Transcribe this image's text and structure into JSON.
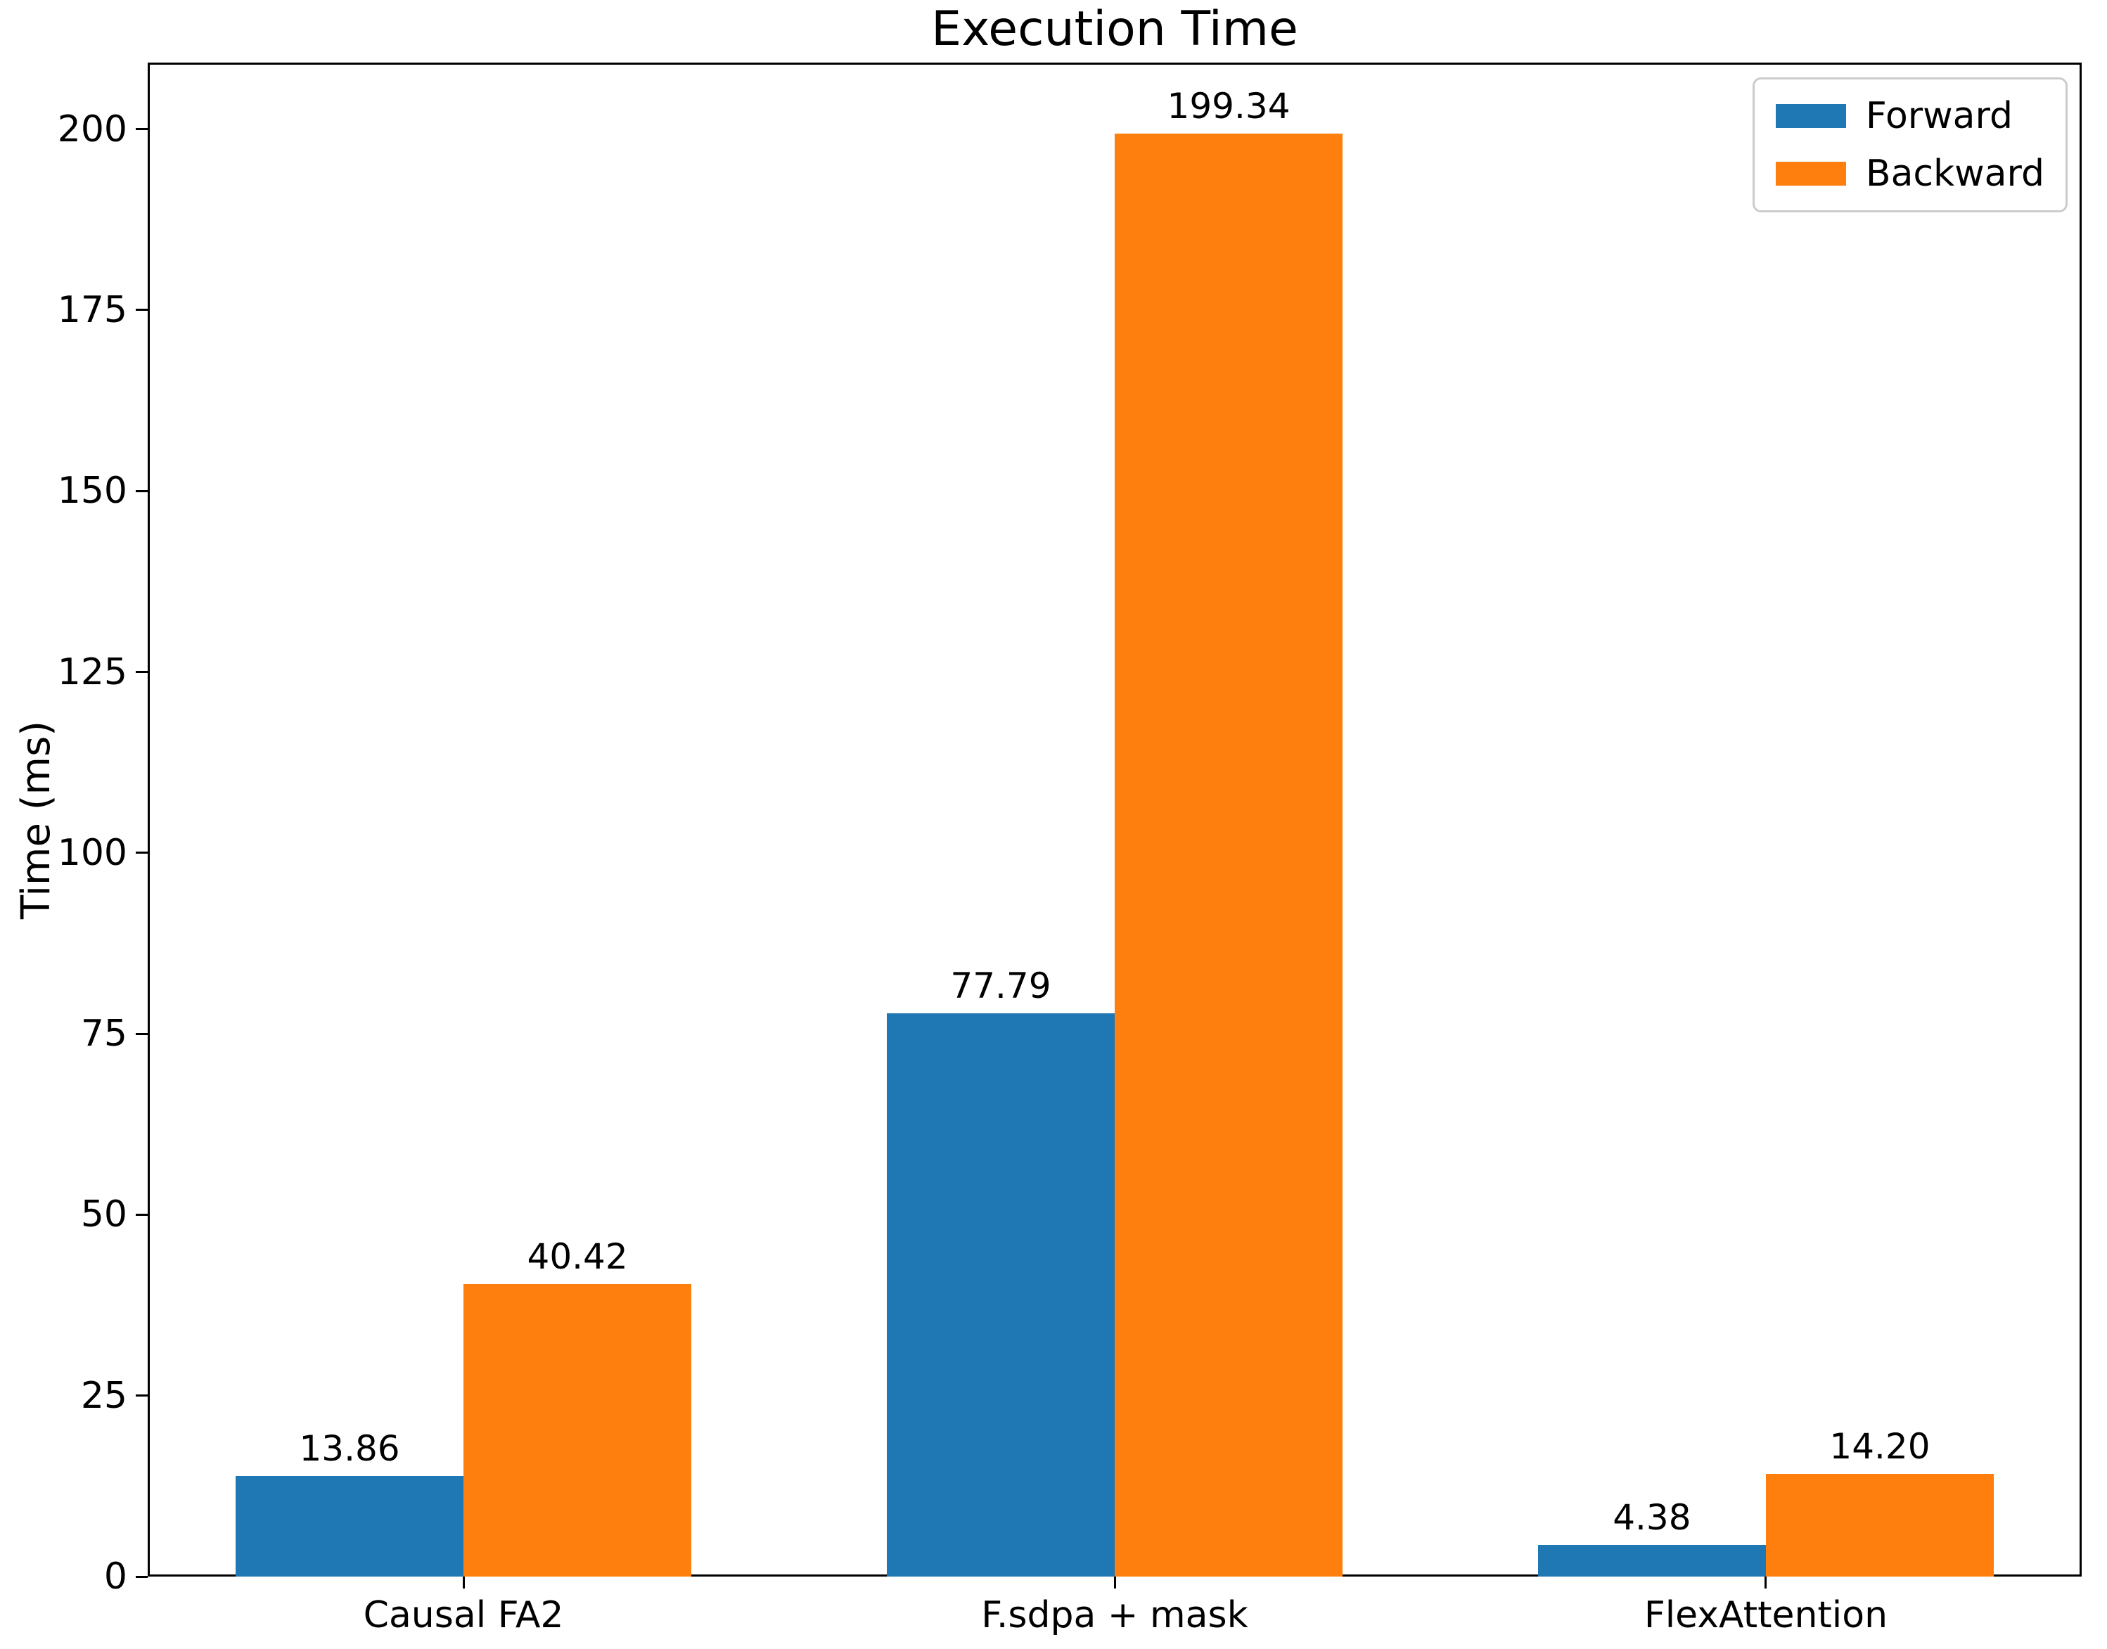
{
  "chart_data": {
    "type": "bar",
    "title": "Execution Time",
    "xlabel": "",
    "ylabel": "Time (ms)",
    "categories": [
      "Causal FA2",
      "F.sdpa + mask",
      "FlexAttention"
    ],
    "series": [
      {
        "name": "Forward",
        "color": "#1f77b4",
        "values": [
          13.86,
          77.79,
          4.38
        ],
        "labels": [
          "13.86",
          "77.79",
          "4.38"
        ]
      },
      {
        "name": "Backward",
        "color": "#ff7f0e",
        "values": [
          40.42,
          199.34,
          14.2
        ],
        "labels": [
          "40.42",
          "199.34",
          "14.20"
        ]
      }
    ],
    "yticks": [
      "0",
      "25",
      "50",
      "75",
      "100",
      "125",
      "150",
      "175",
      "200"
    ],
    "ytick_values": [
      0,
      25,
      50,
      75,
      100,
      125,
      150,
      175,
      200
    ],
    "ylim": [
      0,
      209.2
    ],
    "bar_width": 0.35,
    "grid": false,
    "legend_position": "upper right",
    "axis_color": "#000000",
    "legend_border_color": "#cccccc",
    "background_color": "#ffffff"
  }
}
